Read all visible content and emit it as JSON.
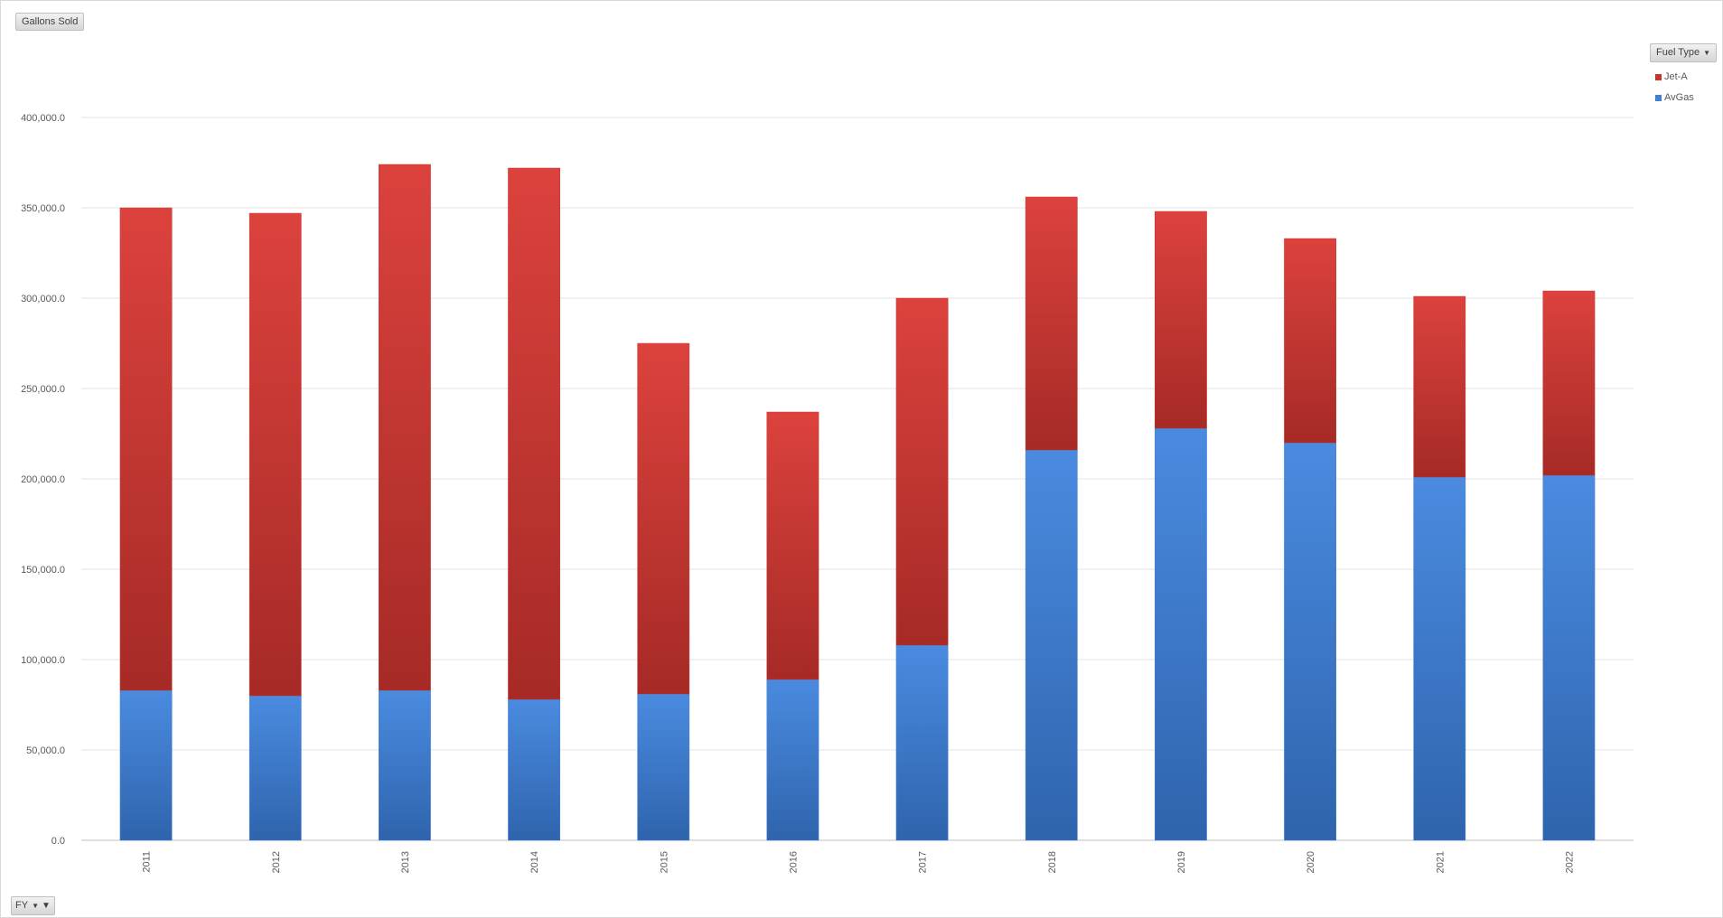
{
  "pivot": {
    "values_field": "Gallons Sold",
    "legend_field": "Fuel Type",
    "axis_field": "FY"
  },
  "chart_data": {
    "type": "bar",
    "stacked": true,
    "categories": [
      "2011",
      "2012",
      "2013",
      "2014",
      "2015",
      "2016",
      "2017",
      "2018",
      "2019",
      "2020",
      "2021",
      "2022"
    ],
    "series": [
      {
        "name": "AvGas",
        "color": "#3f7fd6",
        "values": [
          83000,
          80000,
          83000,
          78000,
          81000,
          89000,
          108000,
          216000,
          228000,
          220000,
          201000,
          202000
        ]
      },
      {
        "name": "Jet-A",
        "color": "#c8342f",
        "values": [
          267000,
          267000,
          291000,
          294000,
          194000,
          148000,
          192000,
          140000,
          120000,
          113000,
          100000,
          102000
        ]
      }
    ],
    "y_ticks": [
      "0.0",
      "50,000.0",
      "100,000.0",
      "150,000.0",
      "200,000.0",
      "250,000.0",
      "300,000.0",
      "350,000.0",
      "400,000.0"
    ],
    "ylim": [
      0,
      400000
    ],
    "grid": true,
    "legend_position": "top-right"
  }
}
